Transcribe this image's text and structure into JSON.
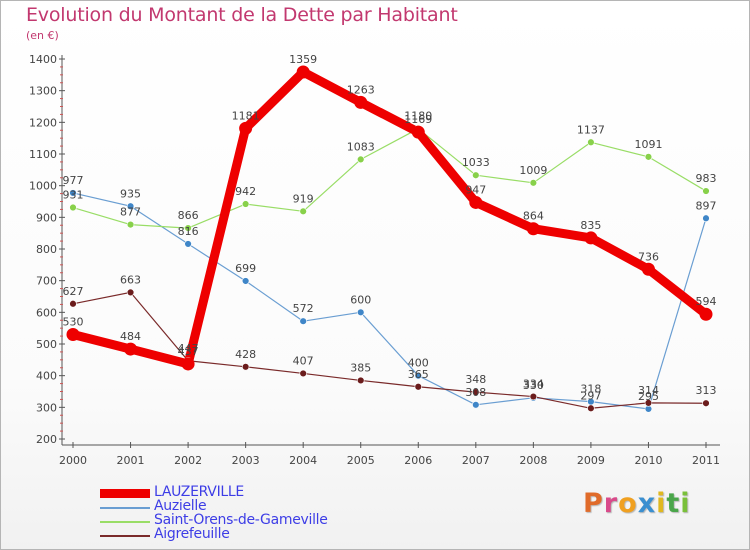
{
  "chart_data": {
    "type": "line",
    "title": "Evolution du Montant de la Dette par Habitant",
    "subtitle": "(en €)",
    "categories": [
      "2000",
      "2001",
      "2002",
      "2003",
      "2004",
      "2005",
      "2006",
      "2007",
      "2008",
      "2009",
      "2010",
      "2011"
    ],
    "y_ticks": [
      "200",
      "300",
      "400",
      "500",
      "600",
      "700",
      "800",
      "900",
      "1000",
      "1100",
      "1200",
      "1300",
      "1400"
    ],
    "ylim": [
      200,
      1400
    ],
    "grid": false,
    "legend_position": "bottom-left",
    "series": [
      {
        "name": "LAUZERVILLE",
        "color": "#ee0000",
        "values": [
          530,
          484,
          437,
          1181,
          1359,
          1263,
          1169,
          947,
          864,
          835,
          736,
          594
        ],
        "labels": [
          "530",
          "484",
          "437",
          "1181",
          "1359",
          "1263",
          "1169",
          "947",
          "864",
          "835",
          "736",
          "594"
        ]
      },
      {
        "name": "Auzielle",
        "color": "#6a9ed2",
        "values": [
          977,
          935,
          816,
          699,
          572,
          600,
          400,
          308,
          330,
          318,
          295,
          897
        ],
        "labels": [
          "977",
          "935",
          "816",
          "699",
          "572",
          "600",
          "400",
          "308",
          "330",
          "318",
          "295",
          "897"
        ]
      },
      {
        "name": "Saint-Orens-de-Gameville",
        "color": "#99dd66",
        "values": [
          931,
          877,
          866,
          942,
          919,
          1083,
          1180,
          1033,
          1009,
          1137,
          1091,
          983
        ],
        "labels": [
          "931",
          "877",
          "866",
          "942",
          "919",
          "1083",
          "1180",
          "1033",
          "1009",
          "1137",
          "1091",
          "983"
        ]
      },
      {
        "name": "Aigrefeuille",
        "color": "#7a2a2a",
        "values": [
          627,
          663,
          447,
          428,
          407,
          385,
          365,
          348,
          334,
          297,
          314,
          313
        ],
        "labels": [
          "627",
          "663",
          "447",
          "428",
          "407",
          "385",
          "365",
          "348",
          "334",
          "297",
          "314",
          "313"
        ]
      }
    ]
  },
  "logo": {
    "letters": [
      "P",
      "r",
      "o",
      "x",
      "i",
      "t",
      "i"
    ],
    "colors": [
      "#e06b2a",
      "#d94a8a",
      "#f0a020",
      "#3a8fd0",
      "#e0b820",
      "#4aa64a",
      "#7ac03a"
    ]
  }
}
